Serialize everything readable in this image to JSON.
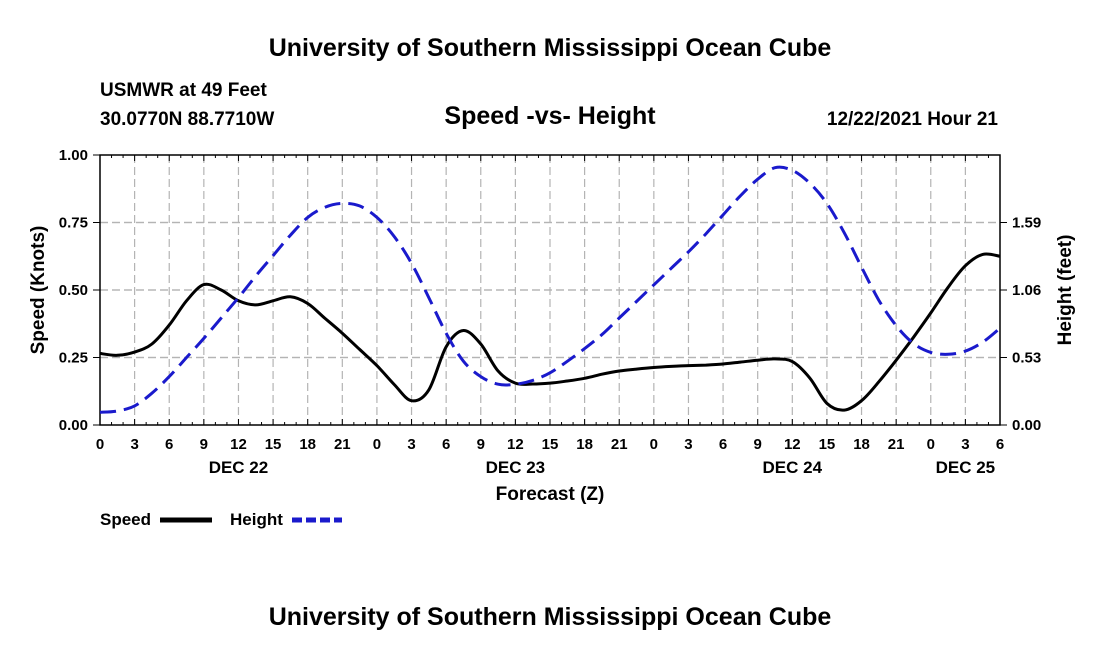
{
  "page": {
    "title_top": "University of Southern Mississippi Ocean Cube",
    "title_bottom": "University of Southern Mississippi Ocean Cube",
    "station": "USMWR at 49 Feet",
    "coords": "30.0770N  88.7710W",
    "chart_title": "Speed -vs- Height",
    "timestamp": "12/22/2021 Hour 21"
  },
  "colors": {
    "speed": "#000000",
    "height": "#1a1acc",
    "grid": "#b4b4b4"
  },
  "chart_data": {
    "type": "line",
    "title": "Speed -vs- Height",
    "xlabel": "Forecast (Z)",
    "ylabel_left": "Speed (Knots)",
    "ylabel_right": "Height (feet)",
    "x_unit": "hours from DEC 22 00Z",
    "x_range": [
      0,
      78
    ],
    "x_ticks": [
      0,
      3,
      6,
      9,
      12,
      15,
      18,
      21,
      24,
      27,
      30,
      33,
      36,
      39,
      42,
      45,
      48,
      51,
      54,
      57,
      60,
      63,
      66,
      69,
      72,
      75,
      78
    ],
    "x_tick_labels": [
      "0",
      "3",
      "6",
      "9",
      "12",
      "15",
      "18",
      "21",
      "0",
      "3",
      "6",
      "9",
      "12",
      "15",
      "18",
      "21",
      "0",
      "3",
      "6",
      "9",
      "12",
      "15",
      "18",
      "21",
      "0",
      "3",
      "6"
    ],
    "day_labels": [
      {
        "x": 12,
        "label": "DEC 22"
      },
      {
        "x": 36,
        "label": "DEC 23"
      },
      {
        "x": 60,
        "label": "DEC 24"
      },
      {
        "x": 75,
        "label": "DEC 25"
      }
    ],
    "y_left": {
      "range": [
        0,
        1
      ],
      "ticks": [
        0,
        0.25,
        0.5,
        0.75,
        1.0
      ],
      "tick_labels": [
        "0.00",
        "0.25",
        "0.50",
        "0.75",
        "1.00"
      ]
    },
    "y_right": {
      "range": [
        0,
        2.12
      ],
      "ticks": [
        0,
        0.53,
        1.06,
        1.59
      ],
      "tick_labels": [
        "0.00",
        "0.53",
        "1.06",
        "1.59"
      ]
    },
    "legend": [
      {
        "name": "Speed",
        "style": "solid",
        "color": "#000000"
      },
      {
        "name": "Height",
        "style": "dashed",
        "color": "#1a1acc"
      }
    ],
    "series": [
      {
        "name": "Speed",
        "axis": "left",
        "x": [
          0,
          1.5,
          3,
          4.5,
          6,
          7.5,
          9,
          10.5,
          12,
          13.5,
          15,
          16.5,
          18,
          19.5,
          21,
          22.5,
          24,
          25.5,
          27,
          28.5,
          30,
          31.5,
          33,
          34.5,
          36,
          37.5,
          39,
          40.5,
          42,
          43.5,
          45,
          46.5,
          48,
          49.5,
          51,
          52.5,
          54,
          55.5,
          57,
          58.5,
          60,
          61.5,
          63,
          64.5,
          66,
          67.5,
          69,
          70.5,
          72,
          73.5,
          75,
          76.5,
          78
        ],
        "values": [
          0.265,
          0.258,
          0.27,
          0.3,
          0.37,
          0.46,
          0.52,
          0.5,
          0.46,
          0.445,
          0.46,
          0.475,
          0.45,
          0.395,
          0.34,
          0.28,
          0.22,
          0.15,
          0.09,
          0.13,
          0.29,
          0.35,
          0.3,
          0.2,
          0.155,
          0.152,
          0.155,
          0.163,
          0.173,
          0.188,
          0.2,
          0.207,
          0.213,
          0.217,
          0.22,
          0.222,
          0.226,
          0.233,
          0.24,
          0.245,
          0.235,
          0.175,
          0.08,
          0.055,
          0.09,
          0.16,
          0.24,
          0.325,
          0.415,
          0.51,
          0.59,
          0.632,
          0.625
        ]
      },
      {
        "name": "Height",
        "axis": "right",
        "x": [
          0,
          1.5,
          3,
          4.5,
          6,
          7.5,
          9,
          10.5,
          12,
          13.5,
          15,
          16.5,
          18,
          19.5,
          21,
          22.5,
          24,
          25.5,
          27,
          28.5,
          30,
          31.5,
          33,
          34.5,
          36,
          37.5,
          39,
          40.5,
          42,
          43.5,
          45,
          46.5,
          48,
          49.5,
          51,
          52.5,
          54,
          55.5,
          57,
          58.5,
          60,
          61.5,
          63,
          64.5,
          66,
          67.5,
          69,
          70.5,
          72,
          73.5,
          75,
          76.5,
          78
        ],
        "values": [
          0.1,
          0.11,
          0.15,
          0.25,
          0.38,
          0.53,
          0.68,
          0.84,
          1.0,
          1.17,
          1.33,
          1.49,
          1.63,
          1.71,
          1.74,
          1.72,
          1.63,
          1.48,
          1.27,
          1.0,
          0.72,
          0.5,
          0.38,
          0.32,
          0.32,
          0.35,
          0.41,
          0.5,
          0.6,
          0.71,
          0.84,
          0.97,
          1.1,
          1.23,
          1.36,
          1.5,
          1.65,
          1.8,
          1.93,
          2.02,
          2.0,
          1.9,
          1.74,
          1.51,
          1.24,
          0.98,
          0.78,
          0.64,
          0.57,
          0.555,
          0.58,
          0.65,
          0.76
        ]
      }
    ]
  }
}
